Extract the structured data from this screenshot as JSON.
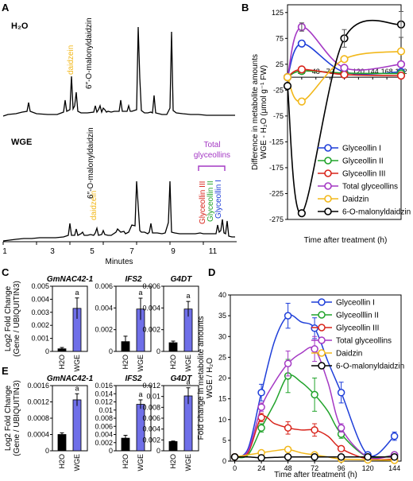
{
  "colors": {
    "glyceollin_I": "#1f3fd9",
    "glyceollin_II": "#21a32b",
    "glyceollin_III": "#d8231a",
    "total": "#a438c4",
    "daidzin": "#f2b81b",
    "malonyl": "#000000",
    "bar": "#6f6fe8"
  },
  "panel_labels": [
    "A",
    "B",
    "C",
    "D",
    "E"
  ],
  "chromatograms": {
    "top": {
      "title": "H₂O",
      "annotations": [
        {
          "text": "daidzein",
          "color": "#f2b81b"
        },
        {
          "text": "6″-O-malonyldaidzin",
          "color": "#000000"
        }
      ]
    },
    "bottom": {
      "title": "WGE",
      "annotations": [
        {
          "text": "daidzein",
          "color": "#f2b81b"
        },
        {
          "text": "6″-O-malonyldaidzin",
          "color": "#000000"
        },
        {
          "text": "Glyceollin III",
          "color": "#d8231a"
        },
        {
          "text": "Glyceollin II",
          "color": "#21a32b"
        },
        {
          "text": "Glyceollin I",
          "color": "#1f3fd9"
        }
      ],
      "bracket_label": [
        "Total",
        "glyceollins"
      ]
    },
    "xlabel": "Minutes",
    "xticks": [
      "1",
      "3",
      "5",
      "7",
      "9",
      "11"
    ]
  },
  "chart_data": [
    {
      "type": "line",
      "panel": "B",
      "ylabel": [
        "Difference in metabolite amounts",
        "WGE - H₂O (μmol g⁻¹ FW)"
      ],
      "xlabel": "Time after treatment (h)",
      "x": [
        0,
        24,
        96,
        192
      ],
      "xticks": [
        24,
        48,
        72,
        96,
        120,
        144,
        168,
        192
      ],
      "yticks": [
        125,
        75,
        25,
        -25,
        -75,
        -125,
        -175,
        -225,
        -275
      ],
      "ylim": [
        -275,
        140
      ],
      "xlim": [
        0,
        192
      ],
      "series": [
        {
          "name": "Glyceollin I",
          "key": "glyceollin_I",
          "values": [
            0,
            65,
            10,
            10
          ]
        },
        {
          "name": "Glyceollin II",
          "key": "glyceollin_II",
          "values": [
            0,
            12,
            8,
            7
          ]
        },
        {
          "name": "Glyceollin III",
          "key": "glyceollin_III",
          "values": [
            0,
            15,
            5,
            3
          ]
        },
        {
          "name": "Total glyceollins",
          "key": "total",
          "values": [
            0,
            97,
            18,
            25
          ]
        },
        {
          "name": "Daidzin",
          "key": "daidzin",
          "values": [
            0,
            -47,
            35,
            50
          ]
        },
        {
          "name": "6-O-malonyldaidzin",
          "key": "malonyl",
          "values": [
            -17,
            -263,
            75,
            102
          ]
        }
      ],
      "error": {
        "malonyl_96": 17,
        "malonyl_192": 25,
        "total_24": 8
      }
    },
    {
      "type": "bar",
      "panel": "C",
      "ylabel": [
        "Log2 Fold Change",
        "(Gene / UBIQUITIN3)"
      ],
      "subplots": [
        {
          "title": "GmNAC42-1",
          "categories": [
            "H2O",
            "WGE"
          ],
          "values": [
            0.0002,
            0.0033
          ],
          "errors": [
            0.0001,
            0.0008
          ],
          "ylim": [
            0,
            0.005
          ],
          "yticks": [
            "0",
            "0.001",
            "0.002",
            "0.003",
            "0.004",
            "0.005"
          ],
          "sig": "a"
        },
        {
          "title": "IFS2",
          "categories": [
            "H2O",
            "WGE"
          ],
          "values": [
            0.0009,
            0.0039
          ],
          "errors": [
            0.0005,
            0.001
          ],
          "ylim": [
            0,
            0.006
          ],
          "yticks": [
            "0",
            "0.002",
            "0.004",
            "0.006"
          ],
          "sig": "a"
        },
        {
          "title": "G4DT",
          "categories": [
            "H2O",
            "WGE"
          ],
          "values": [
            0.0008,
            0.0039
          ],
          "errors": [
            0.00015,
            0.0007
          ],
          "ylim": [
            0,
            0.006
          ],
          "yticks": [
            "0",
            "0.002",
            "0.004",
            "0.006"
          ],
          "sig": "a"
        }
      ]
    },
    {
      "type": "bar",
      "panel": "E",
      "ylabel": [
        "Log2 Fold Change",
        "(Gene / UBIQUITIN3)"
      ],
      "subplots": [
        {
          "title": "GmNAC42-1",
          "categories": [
            "H2O",
            "WGE"
          ],
          "values": [
            0.0004,
            0.00125
          ],
          "errors": [
            4e-05,
            0.00015
          ],
          "ylim": [
            0,
            0.0016
          ],
          "yticks": [
            "0",
            "0.0004",
            "0.0008",
            "0.0012",
            "0.0016"
          ],
          "sig": "a"
        },
        {
          "title": "IFS2",
          "categories": [
            "H2O",
            "WGE"
          ],
          "values": [
            0.0031,
            0.0114
          ],
          "errors": [
            0.0007,
            0.0011
          ],
          "ylim": [
            0,
            0.016
          ],
          "yticks": [
            "0",
            "0.002",
            "0.004",
            "0.006",
            "0.008",
            "0.01",
            "0.012",
            "0.014",
            "0.016"
          ],
          "sig": "a"
        },
        {
          "title": "G4DT",
          "categories": [
            "H2O",
            "WGE"
          ],
          "values": [
            0.0017,
            0.0101
          ],
          "errors": [
            0.0001,
            0.0015
          ],
          "ylim": [
            0,
            0.012
          ],
          "yticks": [
            "0",
            "0.002",
            "0.004",
            "0.006",
            "0.008",
            "0.01",
            "0.012"
          ],
          "sig": "a"
        }
      ]
    },
    {
      "type": "line",
      "panel": "D",
      "ylabel": [
        "Fold change in metabolite amounts",
        "WGE / H₂O"
      ],
      "xlabel": "Time after treatment (h)",
      "x": [
        0,
        12,
        24,
        36,
        48,
        60,
        72,
        84,
        96,
        120,
        144
      ],
      "xticks": [
        0,
        24,
        48,
        72,
        96,
        120,
        144
      ],
      "yticks": [
        0,
        5,
        10,
        15,
        20,
        25,
        30,
        35,
        40
      ],
      "ylim": [
        0,
        40
      ],
      "xlim": [
        -4,
        150
      ],
      "series": [
        {
          "name": "Glyceollin I",
          "key": "glyceollin_I",
          "values": [
            1,
            3,
            16.5,
            29,
            35,
            33.5,
            32,
            24,
            16.5,
            1.5,
            6
          ],
          "errors": [
            0,
            0,
            2,
            0,
            3,
            0,
            2.5,
            0,
            2.5,
            0,
            1
          ]
        },
        {
          "name": "Glyceolllin II",
          "key": "glyceollin_II",
          "values": [
            1,
            1.5,
            8,
            14,
            20.5,
            19,
            16,
            12,
            6.5,
            1,
            1.5
          ],
          "errors": [
            0,
            0,
            1,
            0,
            4,
            0,
            4,
            0,
            1,
            0,
            0.5
          ]
        },
        {
          "name": "Glyceollin III",
          "key": "glyceollin_III",
          "values": [
            1,
            2,
            10.5,
            9,
            8,
            7.5,
            7.5,
            6,
            3,
            0.5,
            0.5
          ],
          "errors": [
            0,
            0,
            1,
            0,
            1.5,
            0,
            1.5,
            0,
            0.5,
            0,
            0.3
          ]
        },
        {
          "name": "Total glyceollins",
          "key": "total",
          "values": [
            1,
            2.5,
            13,
            19,
            23.5,
            26,
            27,
            19,
            8,
            1,
            1.5
          ],
          "errors": [
            0,
            0,
            1,
            0,
            3,
            0,
            3,
            0,
            1,
            0,
            0.5
          ]
        },
        {
          "name": "Daidzin",
          "key": "daidzin",
          "values": [
            1,
            1.5,
            2,
            2.5,
            2.8,
            2,
            1.5,
            1,
            0.5,
            0.3,
            0.2
          ],
          "errors": [
            0,
            0,
            0.3,
            0,
            0.3,
            0,
            0.3,
            0,
            0.2,
            0,
            0.1
          ]
        },
        {
          "name": "6-O-malonyldaidzin",
          "key": "malonyl",
          "values": [
            1,
            1,
            0.8,
            0.9,
            1,
            1,
            1,
            1,
            1,
            1,
            1
          ],
          "errors": [
            0,
            0,
            0.1,
            0,
            0.1,
            0,
            0.1,
            0,
            0.1,
            0,
            0.1
          ]
        }
      ]
    }
  ]
}
